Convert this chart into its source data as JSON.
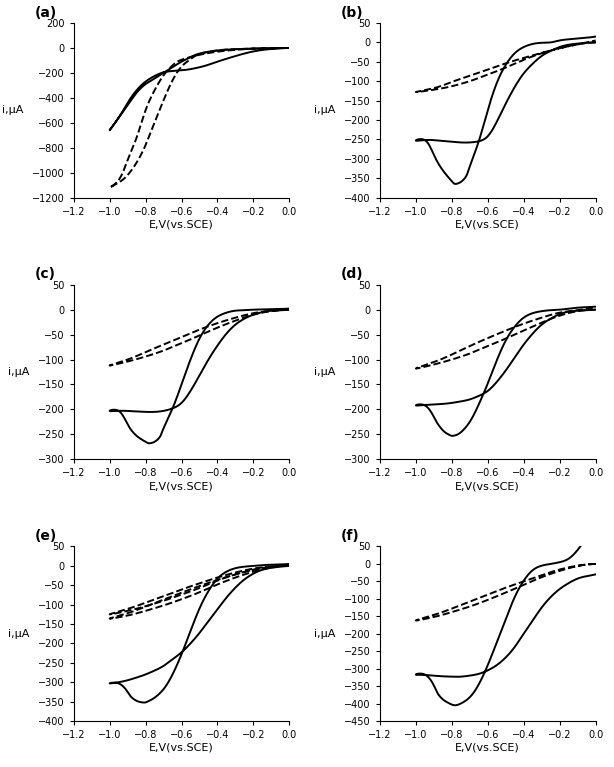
{
  "panels": [
    {
      "label": "(a)",
      "ylim": [
        -1200,
        200
      ],
      "yticks": [
        -1200,
        -1000,
        -800,
        -600,
        -400,
        -200,
        0,
        200
      ],
      "xlim": [
        -1.2,
        0.0
      ],
      "xticks": [
        -1.2,
        -1.0,
        -0.8,
        -0.6,
        -0.4,
        -0.2,
        0.0
      ],
      "solid_x": [
        0.0,
        -0.1,
        -0.2,
        -0.3,
        -0.4,
        -0.5,
        -0.55,
        -0.6,
        -0.65,
        -0.7,
        -0.75,
        -0.8,
        -0.85,
        -0.9,
        -0.95,
        -1.0,
        -0.95,
        -0.9,
        -0.85,
        -0.8,
        -0.75,
        -0.72,
        -0.7,
        -0.68,
        -0.65,
        -0.6,
        -0.55,
        -0.5,
        -0.45,
        -0.4,
        -0.3,
        -0.2,
        -0.1,
        0.0
      ],
      "solid_y": [
        0,
        -2,
        -5,
        -10,
        -20,
        -45,
        -75,
        -110,
        -155,
        -200,
        -245,
        -290,
        -360,
        -460,
        -560,
        -660,
        -560,
        -440,
        -340,
        -270,
        -225,
        -205,
        -195,
        -190,
        -185,
        -180,
        -170,
        -155,
        -135,
        -110,
        -65,
        -28,
        -8,
        0
      ],
      "dash_x": [
        0.0,
        -0.1,
        -0.2,
        -0.3,
        -0.4,
        -0.5,
        -0.55,
        -0.6,
        -0.65,
        -0.7,
        -0.75,
        -0.8,
        -0.85,
        -0.9,
        -0.95,
        -1.0,
        -0.95,
        -0.9,
        -0.85,
        -0.8,
        -0.75,
        -0.7,
        -0.65,
        -0.6,
        -0.5,
        -0.4,
        -0.3,
        -0.2,
        -0.1,
        0.0
      ],
      "dash_y": [
        0,
        -2,
        -5,
        -10,
        -20,
        -50,
        -90,
        -150,
        -260,
        -420,
        -600,
        -780,
        -920,
        -1020,
        -1080,
        -1120,
        -1060,
        -900,
        -720,
        -500,
        -340,
        -220,
        -140,
        -95,
        -55,
        -30,
        -15,
        -6,
        -2,
        0
      ]
    },
    {
      "label": "(b)",
      "ylim": [
        -400,
        50
      ],
      "yticks": [
        -400,
        -350,
        -300,
        -250,
        -200,
        -150,
        -100,
        -50,
        0,
        50
      ],
      "xlim": [
        -1.2,
        0.0
      ],
      "xticks": [
        -1.2,
        -1.0,
        -0.8,
        -0.6,
        -0.4,
        -0.2,
        0.0
      ],
      "solid_x": [
        0.0,
        -0.05,
        -0.1,
        -0.15,
        -0.2,
        -0.25,
        -0.3,
        -0.35,
        -0.4,
        -0.45,
        -0.5,
        -0.55,
        -0.6,
        -0.65,
        -0.7,
        -0.75,
        -0.8,
        -0.85,
        -0.9,
        -0.95,
        -1.0,
        -0.95,
        -0.9,
        -0.85,
        -0.8,
        -0.78,
        -0.75,
        -0.72,
        -0.7,
        -0.65,
        -0.6,
        -0.55,
        -0.5,
        -0.45,
        -0.4,
        -0.35,
        -0.3,
        -0.25,
        -0.2,
        -0.15,
        -0.1,
        -0.05,
        0.0
      ],
      "solid_y": [
        0,
        -1,
        -3,
        -6,
        -12,
        -22,
        -35,
        -55,
        -80,
        -115,
        -158,
        -205,
        -242,
        -255,
        -258,
        -258,
        -256,
        -254,
        -252,
        -252,
        -253,
        -252,
        -290,
        -330,
        -358,
        -365,
        -360,
        -345,
        -320,
        -255,
        -175,
        -105,
        -58,
        -28,
        -12,
        -4,
        -1,
        0,
        5,
        8,
        10,
        12,
        15
      ],
      "dash_x": [
        0.0,
        -0.1,
        -0.2,
        -0.3,
        -0.4,
        -0.5,
        -0.6,
        -0.7,
        -0.8,
        -0.9,
        -1.0,
        -0.9,
        -0.8,
        -0.7,
        -0.6,
        -0.5,
        -0.4,
        -0.3,
        -0.2,
        -0.1,
        0.0
      ],
      "dash_y": [
        0,
        -5,
        -15,
        -28,
        -45,
        -65,
        -83,
        -100,
        -113,
        -122,
        -128,
        -118,
        -102,
        -86,
        -70,
        -54,
        -40,
        -27,
        -15,
        -5,
        5
      ]
    },
    {
      "label": "(c)",
      "ylim": [
        -300,
        50
      ],
      "yticks": [
        -300,
        -250,
        -200,
        -150,
        -100,
        -50,
        0,
        50
      ],
      "xlim": [
        -1.2,
        0.0
      ],
      "xticks": [
        -1.2,
        -1.0,
        -0.8,
        -0.6,
        -0.4,
        -0.2,
        0.0
      ],
      "solid_x": [
        0.0,
        -0.05,
        -0.1,
        -0.15,
        -0.2,
        -0.25,
        -0.3,
        -0.35,
        -0.4,
        -0.45,
        -0.5,
        -0.55,
        -0.6,
        -0.65,
        -0.7,
        -0.75,
        -0.8,
        -0.85,
        -0.9,
        -0.95,
        -1.0,
        -0.95,
        -0.9,
        -0.85,
        -0.8,
        -0.78,
        -0.75,
        -0.72,
        -0.7,
        -0.65,
        -0.6,
        -0.55,
        -0.5,
        -0.45,
        -0.4,
        -0.35,
        -0.3,
        -0.25,
        -0.2,
        -0.1,
        0.0
      ],
      "solid_y": [
        0,
        -1,
        -2,
        -5,
        -10,
        -18,
        -30,
        -48,
        -72,
        -100,
        -132,
        -163,
        -187,
        -198,
        -203,
        -205,
        -205,
        -204,
        -203,
        -203,
        -203,
        -203,
        -230,
        -253,
        -265,
        -268,
        -265,
        -255,
        -238,
        -198,
        -150,
        -100,
        -58,
        -30,
        -14,
        -6,
        -2,
        -1,
        0,
        1,
        2
      ],
      "dash_x": [
        0.0,
        -0.1,
        -0.2,
        -0.3,
        -0.4,
        -0.5,
        -0.6,
        -0.7,
        -0.8,
        -0.9,
        -1.0,
        -0.9,
        -0.8,
        -0.7,
        -0.6,
        -0.5,
        -0.4,
        -0.3,
        -0.2,
        -0.1,
        0.0
      ],
      "dash_y": [
        0,
        -3,
        -10,
        -22,
        -36,
        -52,
        -67,
        -82,
        -94,
        -104,
        -112,
        -100,
        -85,
        -70,
        -55,
        -40,
        -27,
        -16,
        -7,
        -2,
        2
      ]
    },
    {
      "label": "(d)",
      "ylim": [
        -300,
        50
      ],
      "yticks": [
        -300,
        -250,
        -200,
        -150,
        -100,
        -50,
        0,
        50
      ],
      "xlim": [
        -1.2,
        0.0
      ],
      "xticks": [
        -1.2,
        -1.0,
        -0.8,
        -0.6,
        -0.4,
        -0.2,
        0.0
      ],
      "solid_x": [
        0.0,
        -0.05,
        -0.1,
        -0.15,
        -0.2,
        -0.25,
        -0.3,
        -0.35,
        -0.4,
        -0.45,
        -0.5,
        -0.55,
        -0.6,
        -0.65,
        -0.7,
        -0.75,
        -0.8,
        -0.85,
        -0.9,
        -0.95,
        -1.0,
        -0.95,
        -0.9,
        -0.88,
        -0.85,
        -0.82,
        -0.8,
        -0.78,
        -0.75,
        -0.7,
        -0.65,
        -0.6,
        -0.55,
        -0.5,
        -0.45,
        -0.4,
        -0.35,
        -0.3,
        -0.25,
        -0.2,
        -0.15,
        -0.1,
        -0.05,
        0.0
      ],
      "solid_y": [
        0,
        -1,
        -2,
        -4,
        -9,
        -18,
        -30,
        -48,
        -70,
        -96,
        -122,
        -145,
        -163,
        -173,
        -180,
        -184,
        -187,
        -189,
        -190,
        -191,
        -192,
        -192,
        -215,
        -228,
        -242,
        -250,
        -253,
        -252,
        -246,
        -225,
        -190,
        -148,
        -102,
        -62,
        -34,
        -16,
        -7,
        -3,
        -1,
        0,
        2,
        4,
        5,
        6
      ],
      "dash_x": [
        0.0,
        -0.1,
        -0.2,
        -0.3,
        -0.4,
        -0.5,
        -0.6,
        -0.7,
        -0.8,
        -0.9,
        -1.0,
        -0.9,
        -0.8,
        -0.7,
        -0.6,
        -0.5,
        -0.4,
        -0.3,
        -0.2,
        -0.1,
        0.0
      ],
      "dash_y": [
        0,
        -3,
        -12,
        -26,
        -42,
        -58,
        -73,
        -88,
        -100,
        -110,
        -118,
        -105,
        -90,
        -73,
        -57,
        -42,
        -28,
        -16,
        -6,
        -1,
        6
      ]
    },
    {
      "label": "(e)",
      "ylim": [
        -400,
        50
      ],
      "yticks": [
        -400,
        -350,
        -300,
        -250,
        -200,
        -150,
        -100,
        -50,
        0,
        50
      ],
      "xlim": [
        -1.2,
        0.0
      ],
      "xticks": [
        -1.2,
        -1.0,
        -0.8,
        -0.6,
        -0.4,
        -0.2,
        0.0
      ],
      "solid_x": [
        0.0,
        -0.05,
        -0.1,
        -0.15,
        -0.2,
        -0.25,
        -0.3,
        -0.35,
        -0.4,
        -0.45,
        -0.5,
        -0.55,
        -0.6,
        -0.65,
        -0.7,
        -0.75,
        -0.8,
        -0.85,
        -0.9,
        -0.95,
        -1.0,
        -0.95,
        -0.9,
        -0.88,
        -0.85,
        -0.82,
        -0.8,
        -0.78,
        -0.75,
        -0.7,
        -0.65,
        -0.6,
        -0.55,
        -0.5,
        -0.45,
        -0.4,
        -0.35,
        -0.3,
        -0.25,
        -0.2,
        -0.15,
        -0.1,
        -0.05,
        0.0
      ],
      "solid_y": [
        0,
        -2,
        -5,
        -10,
        -20,
        -35,
        -56,
        -82,
        -112,
        -143,
        -173,
        -200,
        -223,
        -241,
        -258,
        -270,
        -280,
        -288,
        -295,
        -300,
        -303,
        -303,
        -325,
        -338,
        -348,
        -352,
        -352,
        -348,
        -340,
        -318,
        -280,
        -228,
        -168,
        -110,
        -65,
        -33,
        -15,
        -6,
        -2,
        0,
        2,
        3,
        4,
        4
      ],
      "dash_x": [
        0.0,
        -0.1,
        -0.2,
        -0.3,
        -0.4,
        -0.5,
        -0.6,
        -0.7,
        -0.8,
        -0.9,
        -1.0,
        -0.9,
        -0.8,
        -0.7,
        -0.6,
        -0.5,
        -0.4,
        -0.3,
        -0.2,
        -0.1,
        0.0
      ],
      "dash_y": [
        3,
        -4,
        -15,
        -30,
        -48,
        -68,
        -86,
        -102,
        -116,
        -128,
        -136,
        -122,
        -105,
        -87,
        -69,
        -52,
        -36,
        -22,
        -10,
        -3,
        4
      ],
      "dash2_x": [
        0.0,
        -0.1,
        -0.2,
        -0.3,
        -0.4,
        -0.5,
        -0.6,
        -0.7,
        -0.8,
        -0.9,
        -1.0,
        -0.9,
        -0.8,
        -0.7,
        -0.6,
        -0.5,
        -0.4,
        -0.3,
        -0.2,
        -0.1,
        0.0
      ],
      "dash2_y": [
        3,
        -2,
        -10,
        -22,
        -38,
        -57,
        -74,
        -90,
        -104,
        -116,
        -125,
        -111,
        -95,
        -78,
        -61,
        -45,
        -30,
        -17,
        -7,
        -1,
        4
      ]
    },
    {
      "label": "(f)",
      "ylim": [
        -450,
        50
      ],
      "yticks": [
        -450,
        -400,
        -350,
        -300,
        -250,
        -200,
        -150,
        -100,
        -50,
        0,
        50
      ],
      "xlim": [
        -1.2,
        0.0
      ],
      "xticks": [
        -1.2,
        -1.0,
        -0.8,
        -0.6,
        -0.4,
        -0.2,
        0.0
      ],
      "solid_x": [
        0.0,
        -0.05,
        -0.1,
        -0.15,
        -0.2,
        -0.25,
        -0.3,
        -0.35,
        -0.4,
        -0.45,
        -0.5,
        -0.55,
        -0.6,
        -0.65,
        -0.7,
        -0.75,
        -0.8,
        -0.85,
        -0.9,
        -0.95,
        -1.0,
        -0.95,
        -0.9,
        -0.88,
        -0.85,
        -0.82,
        -0.8,
        -0.78,
        -0.75,
        -0.7,
        -0.65,
        -0.6,
        -0.55,
        -0.5,
        -0.45,
        -0.4,
        -0.35,
        -0.3,
        -0.25,
        -0.2,
        -0.15,
        -0.1,
        -0.05,
        0.0
      ],
      "solid_y": [
        -30,
        -35,
        -42,
        -55,
        -72,
        -95,
        -125,
        -162,
        -200,
        -238,
        -268,
        -290,
        -305,
        -315,
        -320,
        -323,
        -323,
        -322,
        -320,
        -318,
        -317,
        -317,
        -348,
        -370,
        -388,
        -398,
        -403,
        -405,
        -400,
        -382,
        -345,
        -290,
        -225,
        -158,
        -95,
        -48,
        -18,
        -5,
        0,
        5,
        15,
        40,
        75,
        105
      ],
      "dash_x": [
        0.0,
        -0.1,
        -0.2,
        -0.3,
        -0.4,
        -0.5,
        -0.6,
        -0.7,
        -0.8,
        -0.9,
        -1.0,
        -0.9,
        -0.8,
        -0.7,
        -0.6,
        -0.5,
        -0.4,
        -0.3,
        -0.2,
        -0.1,
        0.0
      ],
      "dash_y": [
        0,
        -6,
        -20,
        -38,
        -60,
        -82,
        -103,
        -122,
        -138,
        -152,
        -162,
        -146,
        -128,
        -108,
        -88,
        -68,
        -50,
        -32,
        -16,
        -5,
        0
      ]
    }
  ],
  "xlabel": "E,V(vs.SCE)",
  "ylabel": "i,μA",
  "linewidth": 1.4,
  "linecolor": "black"
}
